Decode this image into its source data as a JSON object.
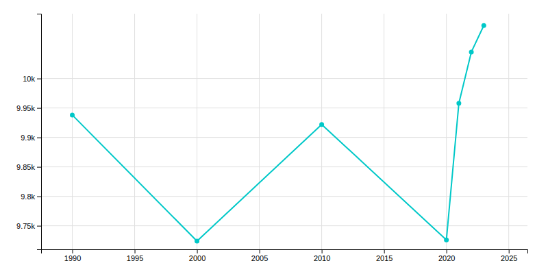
{
  "chart_data": {
    "type": "line",
    "x": [
      1990,
      2000,
      2010,
      2020,
      2021,
      2022,
      2023
    ],
    "values": [
      9938,
      9724,
      9922,
      9726,
      9958,
      10045,
      10090
    ],
    "color": "#00c8c8",
    "marker": "circle",
    "xlim": [
      1987.5,
      2026.5
    ],
    "ylim": [
      9710,
      10110
    ],
    "xticks": [
      1990,
      1995,
      2000,
      2005,
      2010,
      2015,
      2020,
      2025
    ],
    "yticks": [
      {
        "value": 9750,
        "label": "9.75k"
      },
      {
        "value": 9800,
        "label": "9.8k"
      },
      {
        "value": 9850,
        "label": "9.85k"
      },
      {
        "value": 9900,
        "label": "9.9k"
      },
      {
        "value": 9950,
        "label": "9.95k"
      },
      {
        "value": 10000,
        "label": "10k"
      }
    ],
    "grid": true
  }
}
